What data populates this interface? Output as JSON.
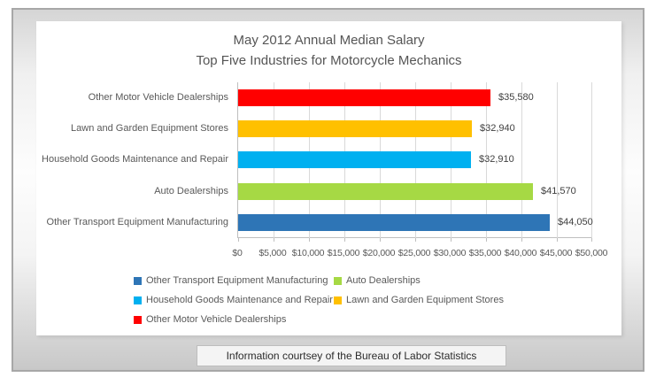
{
  "chart_data": {
    "type": "bar",
    "orientation": "horizontal",
    "title": [
      "May 2012 Annual Median Salary",
      "Top Five Industries for Motorcycle Mechanics"
    ],
    "categories": [
      "Other Motor Vehicle Dealerships",
      "Lawn and Garden Equipment Stores",
      "Household Goods Maintenance and Repair",
      "Auto Dealerships",
      "Other Transport Equipment Manufacturing"
    ],
    "values": [
      35580,
      32940,
      32910,
      41570,
      44050
    ],
    "value_labels": [
      "$35,580",
      "$32,940",
      "$32,910",
      "$41,570",
      "$44,050"
    ],
    "bar_colors": [
      "#ff0000",
      "#ffc000",
      "#00b0f0",
      "#a6d944",
      "#2e75b6"
    ],
    "xlim": [
      0,
      50000
    ],
    "x_tick_labels": [
      "$0",
      "$5,000",
      "$10,000",
      "$15,000",
      "$20,000",
      "$25,000",
      "$30,000",
      "$35,000",
      "$40,000",
      "$45,000",
      "$50,000"
    ],
    "grid": true,
    "legend": {
      "position": "bottom",
      "items": [
        {
          "label": "Other Transport Equipment Manufacturing",
          "color": "#2e75b6"
        },
        {
          "label": "Auto Dealerships",
          "color": "#a6d944"
        },
        {
          "label": "Household Goods Maintenance and Repair",
          "color": "#00b0f0"
        },
        {
          "label": "Lawn and Garden Equipment Stores",
          "color": "#ffc000"
        },
        {
          "label": "Other Motor Vehicle Dealerships",
          "color": "#ff0000"
        }
      ]
    }
  },
  "footer": {
    "text": "Information courtsey of the Bureau of Labor Statistics"
  },
  "ui_colors": {
    "frame_border": "#a7a7a7",
    "panel_bg": "#ffffff",
    "grid_line": "#d9d9d9",
    "axis_line": "#bfbfbf",
    "text": "#595959"
  }
}
